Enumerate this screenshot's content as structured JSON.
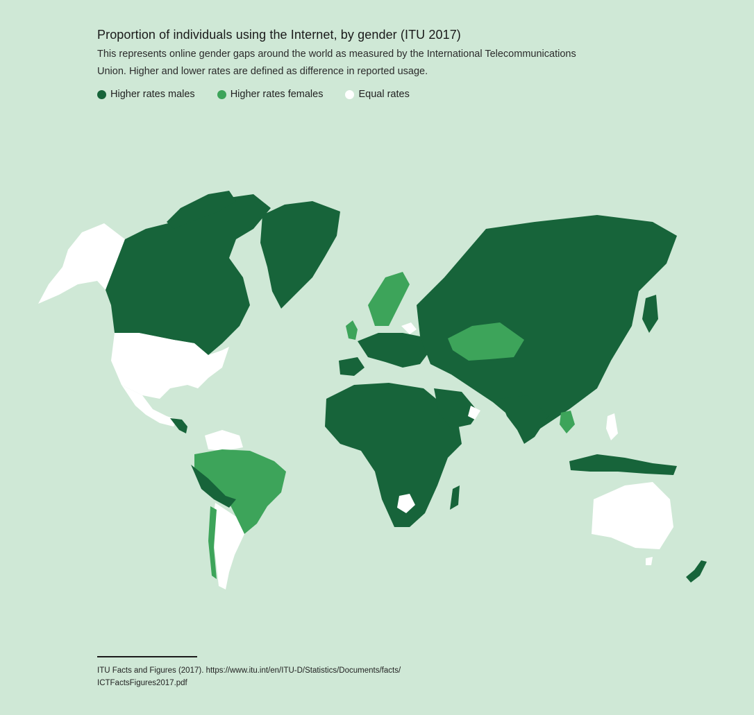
{
  "title": "Proportion of individuals using the Internet, by gender (ITU 2017)",
  "subtitle": "This represents online gender gaps around the world as measured by the International Telecommunications Union. Higher and lower rates are defined as difference in reported usage.",
  "legend": [
    {
      "label": "Higher rates males",
      "color": "#17643a"
    },
    {
      "label": "Higher rates females",
      "color": "#3da45a"
    },
    {
      "label": "Equal rates",
      "color": "#ffffff"
    }
  ],
  "colors": {
    "background": "#cfe8d6",
    "males": "#17643a",
    "females": "#3da45a",
    "equal": "#ffffff"
  },
  "source": "ITU Facts and Figures (2017). https://www.itu.int/en/ITU-D/Statistics/Documents/facts/ ICTFactsFigures2017.pdf"
}
